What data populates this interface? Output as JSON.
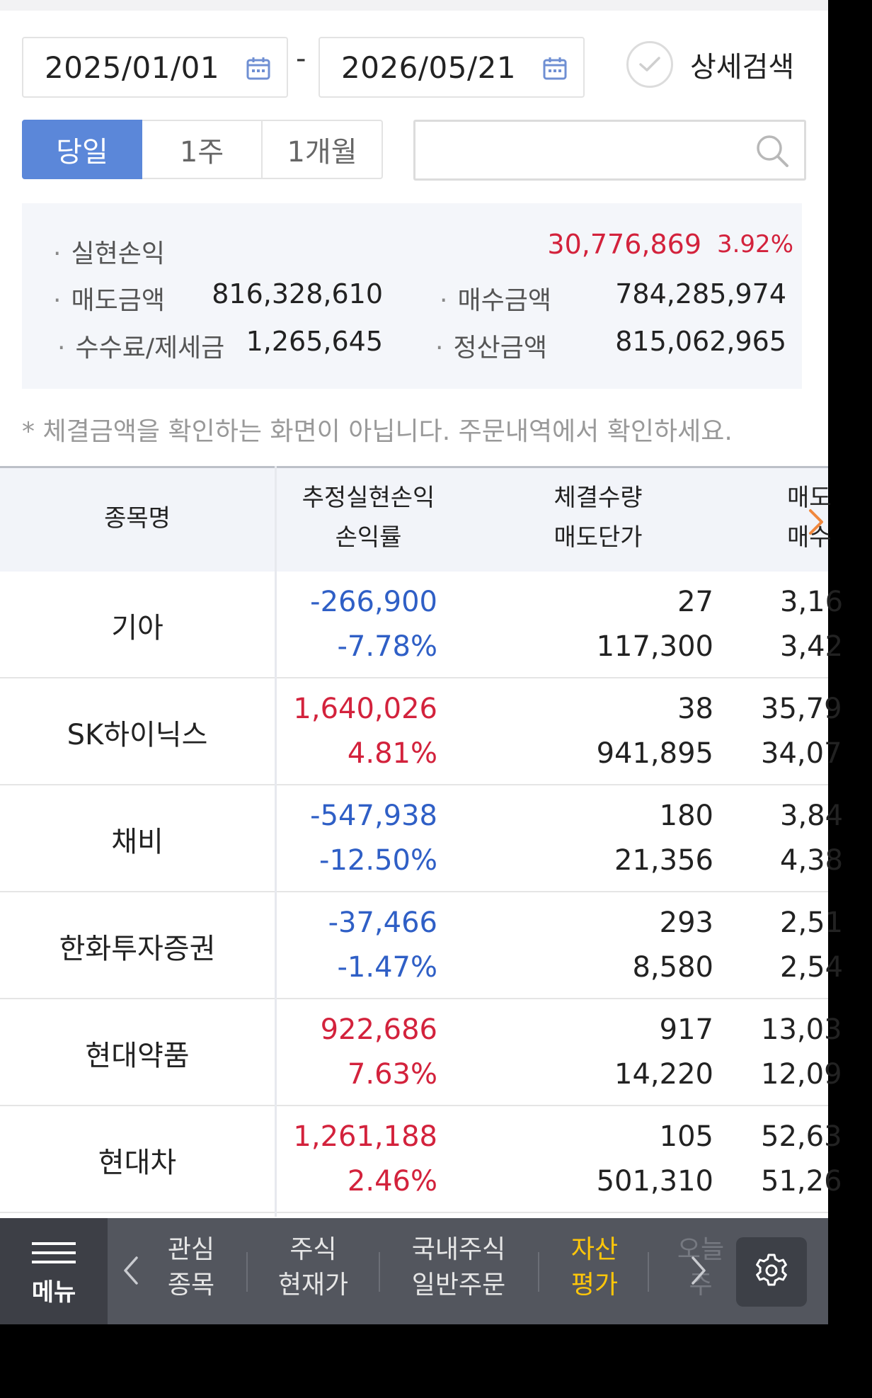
{
  "filters": {
    "start_date": "2025/01/01",
    "separator": "-",
    "end_date": "2026/05/21",
    "detail_search_label": "상세검색"
  },
  "period_tabs": [
    {
      "label": "당일",
      "active": true
    },
    {
      "label": "1주",
      "active": false
    },
    {
      "label": "1개월",
      "active": false
    }
  ],
  "search": {
    "placeholder": "",
    "value": ""
  },
  "summary": {
    "realized_label": "실현손익",
    "realized_value": "30,776,869",
    "realized_rate": "3.92%",
    "sell_amount_label": "매도금액",
    "sell_amount_value": "816,328,610",
    "buy_amount_label": "매수금액",
    "buy_amount_value": "784,285,974",
    "fee_label": "수수료/제세금",
    "fee_value": "1,265,645",
    "settle_label": "정산금액",
    "settle_value": "815,062,965"
  },
  "note": "* 체결금액을 확인하는 화면이 아닙니다. 주문내역에서 확인하세요.",
  "table": {
    "headers": {
      "name": "종목명",
      "pnl_top": "추정실현손익",
      "pnl_bottom": "손익률",
      "qty_top": "체결수량",
      "qty_bottom": "매도단가",
      "amt_top": "매도",
      "amt_bottom": "매수"
    },
    "rows": [
      {
        "name": "기아",
        "pnl": "-266,900",
        "rate": "-7.78%",
        "tone": "blue",
        "qty": "27",
        "price": "117,300",
        "sell": "3,16",
        "buy": "3,42"
      },
      {
        "name": "SK하이닉스",
        "pnl": "1,640,026",
        "rate": "4.81%",
        "tone": "red",
        "qty": "38",
        "price": "941,895",
        "sell": "35,79",
        "buy": "34,07"
      },
      {
        "name": "채비",
        "pnl": "-547,938",
        "rate": "-12.50%",
        "tone": "blue",
        "qty": "180",
        "price": "21,356",
        "sell": "3,84",
        "buy": "4,38"
      },
      {
        "name": "한화투자증권",
        "pnl": "-37,466",
        "rate": "-1.47%",
        "tone": "blue",
        "qty": "293",
        "price": "8,580",
        "sell": "2,51",
        "buy": "2,54"
      },
      {
        "name": "현대약품",
        "pnl": "922,686",
        "rate": "7.63%",
        "tone": "red",
        "qty": "917",
        "price": "14,220",
        "sell": "13,03",
        "buy": "12,09"
      },
      {
        "name": "현대차",
        "pnl": "1,261,188",
        "rate": "2.46%",
        "tone": "red",
        "qty": "105",
        "price": "501,310",
        "sell": "52,63",
        "buy": "51,26"
      }
    ]
  },
  "bottom_nav": {
    "menu_label": "메뉴",
    "items": [
      {
        "line1": "관심",
        "line2": "종목",
        "active": false
      },
      {
        "line1": "주식",
        "line2": "현재가",
        "active": false
      },
      {
        "line1": "국내주식",
        "line2": "일반주문",
        "active": false
      },
      {
        "line1": "자산",
        "line2": "평가",
        "active": true
      },
      {
        "line1": "오늘",
        "line2": "주",
        "active": false
      }
    ]
  },
  "colors": {
    "accent_blue": "#5b87d9",
    "profit_red": "#d3223c",
    "loss_blue": "#2f5fc6",
    "nav_active": "#ffc60a",
    "scroll_arrow": "#f0883e"
  },
  "icons": {
    "calendar": "calendar-icon",
    "check": "check-circle-icon",
    "search": "search-icon",
    "menu": "hamburger-icon",
    "settings": "gear-icon"
  }
}
